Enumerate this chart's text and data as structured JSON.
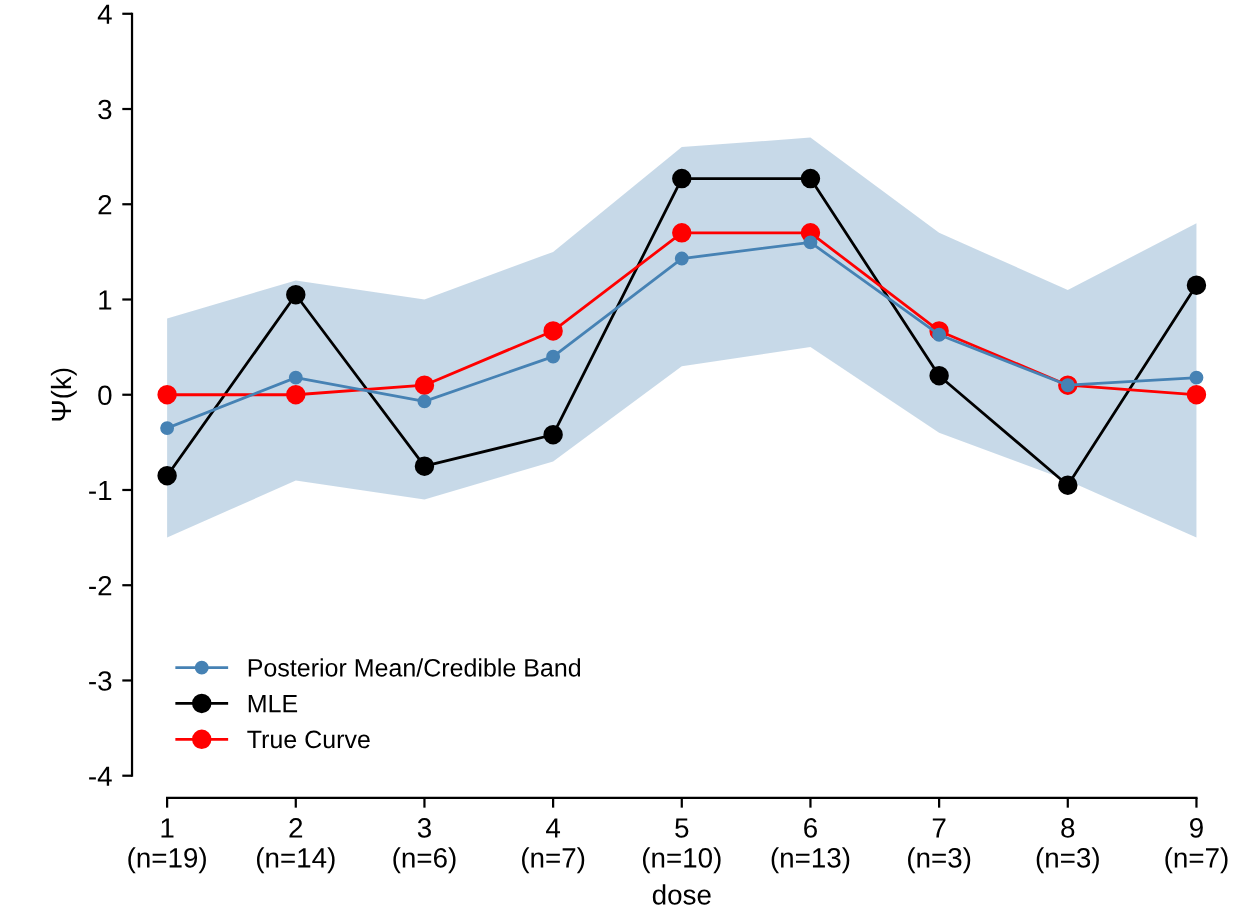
{
  "chart_data": {
    "type": "line",
    "xlabel": "dose",
    "ylabel": "Ψ(k)",
    "categories": [
      "1\n(n=19)",
      "2\n(n=14)",
      "3\n(n=6)",
      "4\n(n=7)",
      "5\n(n=10)",
      "6\n(n=13)",
      "7\n(n=3)",
      "8\n(n=3)",
      "9\n(n=7)"
    ],
    "series": [
      {
        "name": "Posterior Mean/Credible Band",
        "color": "#4682b4",
        "values": [
          -0.35,
          0.18,
          -0.07,
          0.4,
          1.43,
          1.6,
          0.63,
          0.1,
          0.18
        ],
        "lower": [
          -1.5,
          -0.9,
          -1.1,
          -0.7,
          0.3,
          0.5,
          -0.4,
          -0.9,
          -1.5
        ],
        "upper": [
          0.8,
          1.2,
          1.0,
          1.5,
          2.6,
          2.7,
          1.7,
          1.1,
          1.8
        ]
      },
      {
        "name": "MLE",
        "color": "#000000",
        "values": [
          -0.85,
          1.05,
          -0.75,
          -0.42,
          2.27,
          2.27,
          0.2,
          -0.95,
          1.15
        ]
      },
      {
        "name": "True Curve",
        "color": "#ff0000",
        "values": [
          0,
          0,
          0.1,
          0.67,
          1.7,
          1.7,
          0.67,
          0.1,
          0
        ]
      }
    ],
    "ylim": [
      -4,
      4
    ],
    "yticks": [
      -4,
      -3,
      -2,
      -1,
      0,
      1,
      2,
      3,
      4
    ],
    "grid": false,
    "legend": "bottom left",
    "marker": "circle",
    "line_style": "solid"
  }
}
